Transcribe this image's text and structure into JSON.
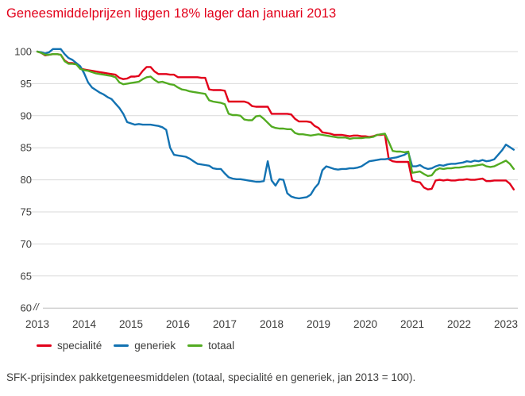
{
  "title": "Geneesmiddelprijzen liggen 18% lager dan januari 2013",
  "caption": "SFK-prijsindex pakketgeneesmiddelen (totaal, specialité en generiek, jan 2013 = 100).",
  "colors": {
    "title": "#e2001a",
    "specialite": "#e2001a",
    "generiek": "#1272b2",
    "totaal": "#52ab21",
    "grid": "#d9d9d9",
    "axis": "#bdbdbd",
    "text": "#3c3c3b"
  },
  "legend": {
    "items": [
      {
        "label": "specialité",
        "color": "#e2001a"
      },
      {
        "label": "generiek",
        "color": "#1272b2"
      },
      {
        "label": "totaal",
        "color": "#52ab21"
      }
    ]
  },
  "chart_data": {
    "type": "line",
    "title": "Geneesmiddelprijzen liggen 18% lager dan januari 2013",
    "xlabel": "",
    "ylabel": "",
    "x_unit": "month",
    "x_start_label": "jan 2013",
    "x_tick_labels": [
      "2013",
      "2014",
      "2015",
      "2016",
      "2017",
      "2018",
      "2019",
      "2020",
      "2021",
      "2022",
      "2023"
    ],
    "y_tick_labels": [
      "100",
      "95",
      "90",
      "85",
      "80",
      "75",
      "70",
      "65",
      "60"
    ],
    "y_ticks": [
      100,
      95,
      90,
      85,
      80,
      75,
      70,
      65,
      60
    ],
    "ylim": [
      60,
      101
    ],
    "axis_break_label": "//",
    "grid": true,
    "legend_position": "bottom",
    "series": [
      {
        "name": "specialité",
        "color": "#e2001a",
        "values": [
          100,
          99.8,
          99.4,
          99.5,
          99.6,
          99.6,
          99.5,
          98.6,
          98.2,
          98.2,
          98.1,
          97.4,
          97.2,
          97.1,
          97.0,
          96.9,
          96.8,
          96.7,
          96.6,
          96.5,
          96.4,
          95.9,
          95.7,
          95.8,
          96.1,
          96.1,
          96.2,
          97.0,
          97.6,
          97.6,
          96.9,
          96.5,
          96.5,
          96.5,
          96.4,
          96.4,
          96.0,
          96.0,
          96.0,
          96.0,
          96.0,
          96.0,
          95.9,
          95.9,
          94.1,
          94.0,
          94.0,
          94.0,
          93.9,
          92.2,
          92.2,
          92.2,
          92.2,
          92.2,
          92.0,
          91.5,
          91.4,
          91.4,
          91.4,
          91.4,
          90.3,
          90.3,
          90.3,
          90.3,
          90.3,
          90.2,
          89.5,
          89.1,
          89.1,
          89.1,
          89.0,
          88.4,
          88.1,
          87.4,
          87.3,
          87.2,
          87.0,
          87.0,
          87.0,
          86.9,
          86.8,
          86.9,
          86.9,
          86.8,
          86.8,
          86.7,
          86.8,
          87.0,
          87.0,
          87.1,
          83.2,
          82.9,
          82.8,
          82.8,
          82.8,
          82.8,
          79.9,
          79.7,
          79.6,
          78.8,
          78.5,
          78.6,
          79.9,
          80.0,
          79.9,
          80.0,
          79.9,
          79.9,
          80.0,
          80.0,
          80.1,
          80.0,
          80.0,
          80.1,
          80.2,
          79.8,
          79.8,
          79.9,
          79.9,
          79.9,
          79.9,
          79.4,
          78.5
        ]
      },
      {
        "name": "generiek",
        "color": "#1272b2",
        "values": [
          100,
          99.9,
          99.7,
          99.9,
          100.4,
          100.4,
          100.4,
          99.6,
          99.0,
          98.7,
          98.2,
          97.7,
          96.6,
          95.2,
          94.4,
          94.0,
          93.6,
          93.3,
          92.9,
          92.6,
          91.9,
          91.2,
          90.3,
          89.0,
          88.8,
          88.6,
          88.7,
          88.6,
          88.6,
          88.6,
          88.5,
          88.4,
          88.2,
          87.8,
          85.0,
          83.9,
          83.8,
          83.7,
          83.6,
          83.3,
          82.9,
          82.5,
          82.4,
          82.3,
          82.2,
          81.8,
          81.7,
          81.7,
          81.0,
          80.4,
          80.2,
          80.1,
          80.1,
          80.0,
          79.9,
          79.8,
          79.7,
          79.7,
          79.8,
          82.9,
          79.9,
          79.1,
          80.1,
          80.0,
          77.9,
          77.4,
          77.2,
          77.1,
          77.2,
          77.3,
          77.7,
          78.7,
          79.4,
          81.5,
          82.1,
          81.9,
          81.7,
          81.6,
          81.7,
          81.7,
          81.8,
          81.8,
          81.9,
          82.1,
          82.5,
          82.9,
          83.0,
          83.1,
          83.2,
          83.2,
          83.3,
          83.4,
          83.5,
          83.7,
          83.9,
          84.3,
          82.1,
          82.1,
          82.3,
          81.9,
          81.7,
          81.8,
          82.1,
          82.3,
          82.2,
          82.4,
          82.5,
          82.5,
          82.6,
          82.7,
          82.9,
          82.8,
          83.0,
          82.9,
          83.1,
          82.9,
          83.0,
          83.2,
          83.9,
          84.6,
          85.5,
          85.1,
          84.7
        ]
      },
      {
        "name": "totaal",
        "color": "#52ab21",
        "values": [
          100,
          99.8,
          99.5,
          99.5,
          99.6,
          99.6,
          99.5,
          98.5,
          98.1,
          98.1,
          98.0,
          97.3,
          97.1,
          97.0,
          96.8,
          96.6,
          96.5,
          96.4,
          96.3,
          96.2,
          96.0,
          95.2,
          94.9,
          95.0,
          95.1,
          95.2,
          95.3,
          95.7,
          96.0,
          96.1,
          95.6,
          95.2,
          95.3,
          95.1,
          94.9,
          94.8,
          94.4,
          94.1,
          94.0,
          93.8,
          93.7,
          93.6,
          93.5,
          93.4,
          92.4,
          92.2,
          92.1,
          92.0,
          91.8,
          90.3,
          90.1,
          90.1,
          90.0,
          89.4,
          89.3,
          89.3,
          89.9,
          90.0,
          89.5,
          88.9,
          88.3,
          88.1,
          88.0,
          88.0,
          87.9,
          87.9,
          87.3,
          87.1,
          87.1,
          87.0,
          86.9,
          87.0,
          87.1,
          87.0,
          86.9,
          86.8,
          86.7,
          86.6,
          86.6,
          86.6,
          86.4,
          86.5,
          86.5,
          86.5,
          86.6,
          86.6,
          86.7,
          87.0,
          87.1,
          87.2,
          85.9,
          84.5,
          84.4,
          84.4,
          84.3,
          84.4,
          81.1,
          81.2,
          81.3,
          80.9,
          80.6,
          80.7,
          81.5,
          81.8,
          81.7,
          81.8,
          81.8,
          81.9,
          81.9,
          82.0,
          82.1,
          82.1,
          82.2,
          82.3,
          82.4,
          82.1,
          82.0,
          82.1,
          82.4,
          82.7,
          83.0,
          82.5,
          81.7
        ]
      }
    ]
  }
}
